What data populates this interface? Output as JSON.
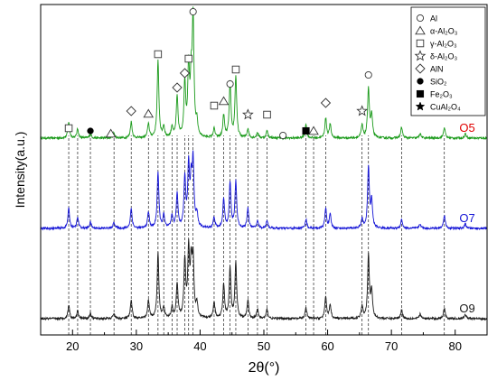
{
  "chart_data": {
    "type": "line",
    "xlabel": "2θ(°)",
    "ylabel": "Intensity(a.u.)",
    "xlim": [
      15,
      85
    ],
    "x_ticks": [
      20,
      30,
      40,
      50,
      60,
      70,
      80
    ],
    "y_ticks": "none",
    "grid": false,
    "legend_position": "top-right",
    "legend": [
      {
        "symbol": "open-circle",
        "label": "Al"
      },
      {
        "symbol": "open-triangle",
        "label": "α-Al₂O₃"
      },
      {
        "symbol": "open-square",
        "label": "γ-Al₂O₃"
      },
      {
        "symbol": "open-star",
        "label": "δ-Al₂O₃"
      },
      {
        "symbol": "open-diamond",
        "label": "AlN"
      },
      {
        "symbol": "filled-circle",
        "label": "SiO₂"
      },
      {
        "symbol": "filled-square",
        "label": "Fe₂O₃"
      },
      {
        "symbol": "filled-star",
        "label": "CuAl₂O₄"
      }
    ],
    "series": [
      {
        "name": "O5",
        "color": "#1a9a1a",
        "label_color": "#e00000",
        "baseline": 2.0,
        "peaks": [
          [
            19.4,
            0.18
          ],
          [
            20.8,
            0.1
          ],
          [
            22.8,
            0.05
          ],
          [
            26.5,
            0.06
          ],
          [
            29.2,
            0.18
          ],
          [
            31.9,
            0.16
          ],
          [
            33.4,
            0.85
          ],
          [
            34.3,
            0.12
          ],
          [
            35.6,
            0.12
          ],
          [
            36.4,
            0.45
          ],
          [
            37.6,
            0.6
          ],
          [
            38.2,
            0.75
          ],
          [
            38.6,
            0.55
          ],
          [
            38.9,
            1.28
          ],
          [
            39.5,
            0.15
          ],
          [
            42.2,
            0.1
          ],
          [
            43.7,
            0.25
          ],
          [
            44.7,
            0.6
          ],
          [
            45.6,
            0.68
          ],
          [
            47.5,
            0.1
          ],
          [
            49.0,
            0.06
          ],
          [
            50.5,
            0.08
          ],
          [
            56.6,
            0.15
          ],
          [
            59.7,
            0.22
          ],
          [
            60.4,
            0.15
          ],
          [
            65.4,
            0.14
          ],
          [
            66.4,
            0.55
          ],
          [
            66.9,
            0.25
          ],
          [
            71.6,
            0.12
          ],
          [
            74.5,
            0.05
          ],
          [
            78.3,
            0.12
          ],
          [
            81.6,
            0.05
          ]
        ]
      },
      {
        "name": "O7",
        "color": "#1515d6",
        "label_color": "#1515d6",
        "baseline": 1.0,
        "peaks": [
          [
            19.4,
            0.22
          ],
          [
            20.8,
            0.12
          ],
          [
            22.8,
            0.07
          ],
          [
            26.5,
            0.07
          ],
          [
            29.2,
            0.22
          ],
          [
            31.9,
            0.18
          ],
          [
            33.4,
            0.62
          ],
          [
            34.3,
            0.14
          ],
          [
            35.6,
            0.14
          ],
          [
            36.4,
            0.38
          ],
          [
            37.6,
            0.55
          ],
          [
            38.2,
            0.68
          ],
          [
            38.6,
            0.45
          ],
          [
            38.9,
            0.7
          ],
          [
            39.5,
            0.15
          ],
          [
            42.2,
            0.12
          ],
          [
            43.7,
            0.32
          ],
          [
            44.7,
            0.5
          ],
          [
            45.6,
            0.52
          ],
          [
            47.5,
            0.22
          ],
          [
            49.0,
            0.08
          ],
          [
            50.5,
            0.09
          ],
          [
            56.6,
            0.1
          ],
          [
            59.7,
            0.22
          ],
          [
            60.4,
            0.15
          ],
          [
            65.4,
            0.1
          ],
          [
            66.4,
            0.68
          ],
          [
            66.9,
            0.3
          ],
          [
            71.6,
            0.1
          ],
          [
            74.5,
            0.05
          ],
          [
            78.3,
            0.15
          ],
          [
            81.6,
            0.05
          ]
        ]
      },
      {
        "name": "O9",
        "color": "#1a1a1a",
        "label_color": "#1a1a1a",
        "baseline": 0.0,
        "peaks": [
          [
            19.4,
            0.15
          ],
          [
            20.8,
            0.09
          ],
          [
            22.8,
            0.06
          ],
          [
            26.5,
            0.06
          ],
          [
            29.2,
            0.2
          ],
          [
            31.9,
            0.2
          ],
          [
            33.4,
            0.72
          ],
          [
            34.3,
            0.12
          ],
          [
            35.6,
            0.12
          ],
          [
            36.4,
            0.38
          ],
          [
            37.6,
            0.64
          ],
          [
            38.2,
            0.72
          ],
          [
            38.6,
            0.55
          ],
          [
            38.9,
            0.62
          ],
          [
            39.5,
            0.15
          ],
          [
            42.2,
            0.18
          ],
          [
            43.7,
            0.38
          ],
          [
            44.7,
            0.55
          ],
          [
            45.6,
            0.62
          ],
          [
            47.5,
            0.2
          ],
          [
            49.0,
            0.1
          ],
          [
            50.5,
            0.1
          ],
          [
            56.6,
            0.12
          ],
          [
            59.7,
            0.24
          ],
          [
            60.4,
            0.15
          ],
          [
            65.4,
            0.14
          ],
          [
            66.4,
            0.7
          ],
          [
            66.9,
            0.3
          ],
          [
            71.6,
            0.1
          ],
          [
            74.5,
            0.05
          ],
          [
            78.3,
            0.12
          ],
          [
            81.6,
            0.05
          ]
        ]
      }
    ],
    "reference_lines_2theta": [
      19.4,
      20.8,
      22.8,
      26.5,
      29.2,
      31.9,
      33.4,
      34.3,
      35.6,
      36.4,
      37.6,
      38.2,
      38.9,
      42.2,
      43.7,
      44.7,
      45.6,
      47.5,
      49.0,
      50.5,
      56.6,
      57.8,
      59.7,
      65.4,
      66.4,
      71.6,
      78.3
    ],
    "annotations": [
      {
        "symbol": "open-square",
        "x": 19.4,
        "y": 2.11
      },
      {
        "symbol": "filled-circle",
        "x": 22.8,
        "y": 2.08
      },
      {
        "symbol": "open-triangle",
        "x": 26.0,
        "y": 2.05
      },
      {
        "symbol": "open-diamond",
        "x": 29.2,
        "y": 2.3
      },
      {
        "symbol": "open-triangle",
        "x": 31.9,
        "y": 2.27
      },
      {
        "symbol": "open-square",
        "x": 33.4,
        "y": 2.93
      },
      {
        "symbol": "open-diamond",
        "x": 36.4,
        "y": 2.56
      },
      {
        "symbol": "open-diamond",
        "x": 37.6,
        "y": 2.72
      },
      {
        "symbol": "open-square",
        "x": 38.2,
        "y": 2.88
      },
      {
        "symbol": "open-circle",
        "x": 38.9,
        "y": 3.4
      },
      {
        "symbol": "open-square",
        "x": 42.2,
        "y": 2.36
      },
      {
        "symbol": "open-triangle",
        "x": 43.7,
        "y": 2.41
      },
      {
        "symbol": "open-circle",
        "x": 44.7,
        "y": 2.6
      },
      {
        "symbol": "open-square",
        "x": 45.6,
        "y": 2.76
      },
      {
        "symbol": "open-star",
        "x": 47.5,
        "y": 2.26
      },
      {
        "symbol": "open-square",
        "x": 50.5,
        "y": 2.26
      },
      {
        "symbol": "open-circle",
        "x": 53.0,
        "y": 2.03
      },
      {
        "symbol": "filled-square",
        "x": 56.6,
        "y": 2.08
      },
      {
        "symbol": "open-triangle",
        "x": 57.8,
        "y": 2.08
      },
      {
        "symbol": "open-diamond",
        "x": 59.7,
        "y": 2.39
      },
      {
        "symbol": "open-star",
        "x": 65.4,
        "y": 2.3
      },
      {
        "symbol": "open-circle",
        "x": 66.4,
        "y": 2.7
      }
    ]
  }
}
